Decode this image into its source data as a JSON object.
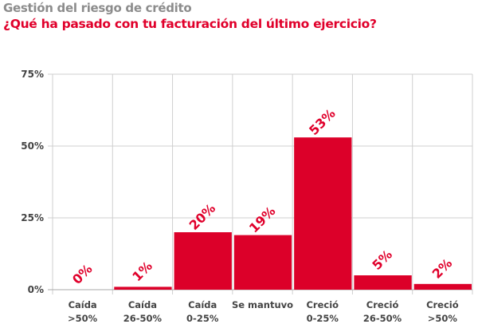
{
  "chart_data": {
    "type": "bar",
    "title": "Gestión del riesgo de crédito",
    "subtitle": "¿Qué ha pasado con tu facturación del último ejercicio?",
    "categories": [
      [
        "Caída",
        ">50%"
      ],
      [
        "Caída",
        "26-50%"
      ],
      [
        "Caída",
        "0-25%"
      ],
      [
        "Se mantuvo",
        ""
      ],
      [
        "Creció",
        "0-25%"
      ],
      [
        "Creció",
        "26-50%"
      ],
      [
        "Creció",
        ">50%"
      ]
    ],
    "values": [
      0,
      1,
      20,
      19,
      53,
      5,
      2
    ],
    "data_labels": [
      "0%",
      "1%",
      "20%",
      "19%",
      "53%",
      "5%",
      "2%"
    ],
    "ylim": [
      0,
      75
    ],
    "yticks": [
      0,
      25,
      50,
      75
    ],
    "ytick_labels": [
      "0%",
      "25%",
      "50%",
      "75%"
    ],
    "xlabel": "",
    "ylabel": "",
    "grid": true,
    "colors": {
      "bar": "#dc0029",
      "label": "#e0002b",
      "grid": "#cfcfcf"
    }
  }
}
